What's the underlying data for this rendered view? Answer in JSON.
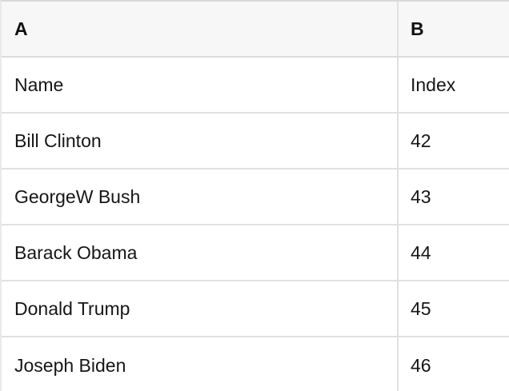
{
  "table": {
    "column_headers": [
      {
        "label": "A"
      },
      {
        "label": "B"
      }
    ],
    "rows": [
      {
        "a": "Name",
        "b": "Index"
      },
      {
        "a": "Bill Clinton",
        "b": "42"
      },
      {
        "a": "GeorgeW Bush",
        "b": "43"
      },
      {
        "a": "Barack Obama",
        "b": "44"
      },
      {
        "a": "Donald Trump",
        "b": "45"
      },
      {
        "a": "Joseph Biden",
        "b": "46"
      }
    ]
  },
  "colors": {
    "header_background": "#f7f7f7",
    "outer_border": "#d9d9d9",
    "grid_border": "#e1e1e1",
    "text": "#161616"
  }
}
